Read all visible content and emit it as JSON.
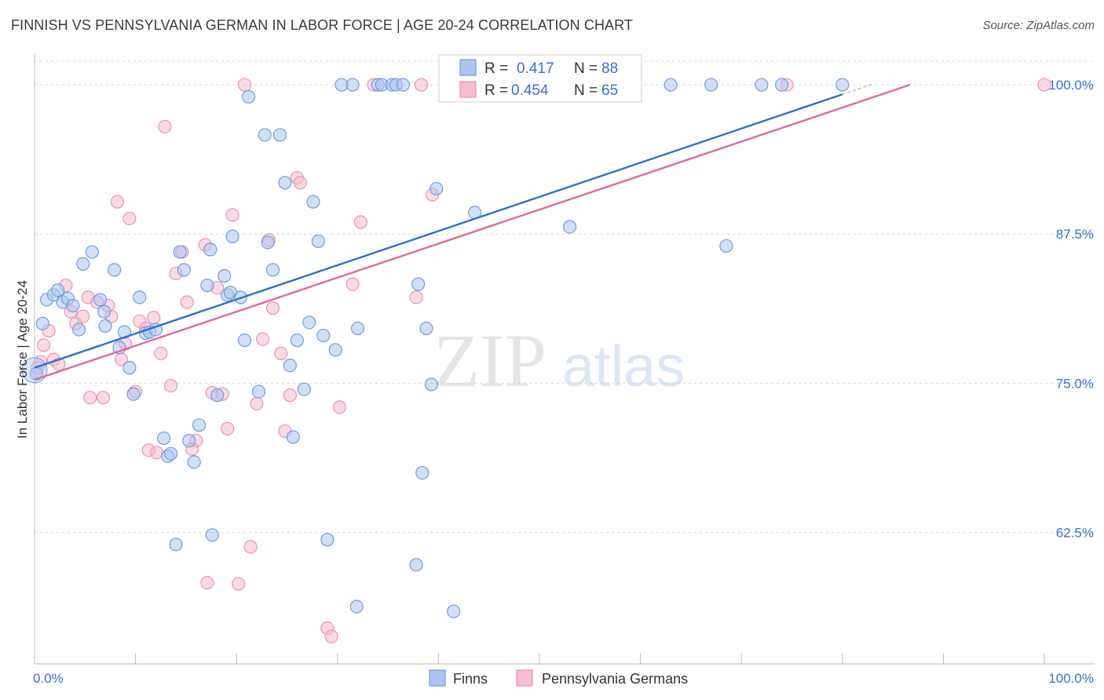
{
  "title": "FINNISH VS PENNSYLVANIA GERMAN IN LABOR FORCE | AGE 20-24 CORRELATION CHART",
  "source": "Source: ZipAtlas.com",
  "watermark": {
    "zip": "ZIP",
    "atlas": "atlas"
  },
  "colors": {
    "finns_fill": "#a9c5f0",
    "finns_stroke": "#6f9de0",
    "finns_line": "#2f6fd0",
    "pg_fill": "#f6bcd0",
    "pg_stroke": "#ec93b2",
    "pg_line": "#e06a97",
    "tick_text": "#3b6fd4",
    "grid": "#d8d8d8"
  },
  "legend_box": {
    "rows": [
      {
        "r_label": "R = ",
        "r_value": "0.417",
        "n_label": "N = ",
        "n_value": "88"
      },
      {
        "r_label": "R = ",
        "r_value": "0.454",
        "n_label": "N = ",
        "n_value": "65"
      }
    ]
  },
  "chart_data": {
    "type": "scatter",
    "title": "FINNISH VS PENNSYLVANIA GERMAN IN LABOR FORCE | AGE 20-24 CORRELATION CHART",
    "xlabel": "",
    "ylabel": "In Labor Force | Age 20-24",
    "xlim": [
      0,
      100
    ],
    "ylim": [
      51.5,
      102.5
    ],
    "x_tick_labels": [
      "0.0%",
      "100.0%"
    ],
    "y_ticks": [
      62.5,
      75.0,
      87.5,
      100.0
    ],
    "y_tick_labels": [
      "62.5%",
      "75.0%",
      "87.5%",
      "100.0%"
    ],
    "grid": true,
    "legend_placement": "top-center",
    "series": [
      {
        "name": "Finns",
        "r": 0.417,
        "n": 88,
        "trend": {
          "x0": 0,
          "y0": 76.3,
          "x1": 80,
          "y1": 99.2
        },
        "points": [
          [
            0.2,
            75.8
          ],
          [
            0.8,
            80.0
          ],
          [
            1.2,
            82.0
          ],
          [
            1.9,
            82.4
          ],
          [
            2.3,
            82.8
          ],
          [
            2.8,
            81.8
          ],
          [
            3.3,
            82.1
          ],
          [
            3.8,
            81.5
          ],
          [
            4.4,
            79.5
          ],
          [
            4.8,
            85.0
          ],
          [
            5.7,
            86.0
          ],
          [
            6.5,
            82.0
          ],
          [
            6.9,
            81.0
          ],
          [
            7.0,
            79.8
          ],
          [
            7.9,
            84.5
          ],
          [
            8.4,
            78.0
          ],
          [
            8.9,
            79.3
          ],
          [
            9.4,
            76.3
          ],
          [
            9.8,
            74.1
          ],
          [
            10.4,
            82.2
          ],
          [
            11.0,
            79.2
          ],
          [
            11.4,
            79.3
          ],
          [
            12.0,
            79.5
          ],
          [
            12.8,
            70.4
          ],
          [
            13.2,
            68.9
          ],
          [
            13.5,
            69.1
          ],
          [
            14.0,
            61.5
          ],
          [
            14.4,
            86.0
          ],
          [
            14.8,
            84.5
          ],
          [
            15.3,
            70.2
          ],
          [
            15.8,
            68.4
          ],
          [
            16.3,
            71.5
          ],
          [
            17.1,
            83.2
          ],
          [
            17.4,
            86.2
          ],
          [
            17.6,
            62.3
          ],
          [
            18.1,
            74.0
          ],
          [
            18.8,
            84.0
          ],
          [
            19.1,
            82.4
          ],
          [
            19.4,
            82.6
          ],
          [
            19.6,
            87.3
          ],
          [
            20.4,
            82.2
          ],
          [
            20.8,
            78.6
          ],
          [
            21.2,
            99.0
          ],
          [
            22.2,
            74.3
          ],
          [
            22.8,
            95.8
          ],
          [
            23.1,
            86.8
          ],
          [
            23.6,
            84.5
          ],
          [
            24.3,
            95.8
          ],
          [
            24.8,
            91.8
          ],
          [
            25.3,
            76.5
          ],
          [
            25.6,
            70.5
          ],
          [
            26.0,
            78.6
          ],
          [
            26.7,
            74.5
          ],
          [
            27.2,
            80.1
          ],
          [
            27.6,
            90.2
          ],
          [
            28.1,
            86.9
          ],
          [
            28.6,
            79.0
          ],
          [
            29.0,
            61.9
          ],
          [
            29.8,
            77.8
          ],
          [
            30.4,
            100.0
          ],
          [
            31.5,
            100.0
          ],
          [
            31.9,
            56.3
          ],
          [
            32.0,
            79.6
          ],
          [
            34.0,
            100.0
          ],
          [
            34.4,
            100.0
          ],
          [
            35.4,
            100.0
          ],
          [
            35.8,
            100.0
          ],
          [
            36.5,
            100.0
          ],
          [
            37.8,
            59.8
          ],
          [
            38.0,
            83.3
          ],
          [
            38.4,
            67.5
          ],
          [
            38.8,
            79.6
          ],
          [
            39.3,
            74.9
          ],
          [
            39.8,
            91.3
          ],
          [
            41.5,
            55.9
          ],
          [
            43.0,
            100.0
          ],
          [
            43.6,
            89.3
          ],
          [
            45.0,
            100.0
          ],
          [
            49.0,
            100.0
          ],
          [
            53.0,
            88.1
          ],
          [
            55.0,
            100.0
          ],
          [
            58.0,
            100.0
          ],
          [
            63.0,
            100.0
          ],
          [
            67.0,
            100.0
          ],
          [
            68.5,
            86.5
          ],
          [
            72.0,
            100.0
          ],
          [
            74.0,
            100.0
          ],
          [
            80.0,
            100.0
          ]
        ]
      },
      {
        "name": "Pennsylvania Germans",
        "r": 0.454,
        "n": 65,
        "trend": {
          "x0": 0,
          "y0": 75.3,
          "x1": 86.7,
          "y1": 100.0
        },
        "points": [
          [
            0.3,
            76.3
          ],
          [
            0.6,
            76.8
          ],
          [
            0.9,
            78.2
          ],
          [
            1.4,
            79.4
          ],
          [
            1.9,
            77.0
          ],
          [
            2.4,
            76.6
          ],
          [
            3.1,
            83.2
          ],
          [
            3.6,
            81.0
          ],
          [
            4.1,
            80.0
          ],
          [
            4.8,
            80.6
          ],
          [
            5.3,
            82.2
          ],
          [
            5.5,
            73.8
          ],
          [
            6.2,
            81.8
          ],
          [
            6.8,
            73.8
          ],
          [
            7.3,
            81.5
          ],
          [
            7.6,
            80.6
          ],
          [
            8.2,
            90.2
          ],
          [
            8.6,
            77.0
          ],
          [
            9.0,
            78.3
          ],
          [
            9.4,
            88.8
          ],
          [
            10.0,
            74.3
          ],
          [
            10.4,
            80.2
          ],
          [
            11.0,
            79.6
          ],
          [
            11.3,
            69.4
          ],
          [
            11.8,
            80.5
          ],
          [
            12.1,
            69.2
          ],
          [
            12.5,
            77.5
          ],
          [
            12.9,
            96.5
          ],
          [
            13.5,
            74.8
          ],
          [
            14.0,
            84.2
          ],
          [
            14.6,
            86.0
          ],
          [
            15.1,
            81.8
          ],
          [
            15.6,
            69.5
          ],
          [
            16.0,
            70.2
          ],
          [
            16.9,
            86.6
          ],
          [
            17.1,
            58.3
          ],
          [
            17.6,
            74.2
          ],
          [
            18.1,
            83.0
          ],
          [
            18.6,
            74.1
          ],
          [
            19.1,
            71.2
          ],
          [
            19.6,
            89.1
          ],
          [
            20.2,
            58.2
          ],
          [
            20.8,
            100.0
          ],
          [
            21.4,
            61.3
          ],
          [
            22.0,
            73.3
          ],
          [
            22.6,
            78.7
          ],
          [
            23.2,
            87.0
          ],
          [
            23.6,
            81.3
          ],
          [
            24.4,
            77.5
          ],
          [
            24.8,
            71.0
          ],
          [
            25.3,
            74.0
          ],
          [
            26.0,
            92.2
          ],
          [
            26.3,
            91.8
          ],
          [
            29.0,
            54.5
          ],
          [
            29.4,
            53.8
          ],
          [
            30.2,
            73.0
          ],
          [
            31.5,
            83.3
          ],
          [
            32.3,
            88.5
          ],
          [
            33.6,
            100.0
          ],
          [
            37.8,
            82.2
          ],
          [
            38.3,
            100.0
          ],
          [
            39.4,
            90.8
          ],
          [
            58.0,
            100.0
          ],
          [
            74.5,
            100.0
          ],
          [
            100.0,
            100.0
          ]
        ]
      }
    ]
  }
}
